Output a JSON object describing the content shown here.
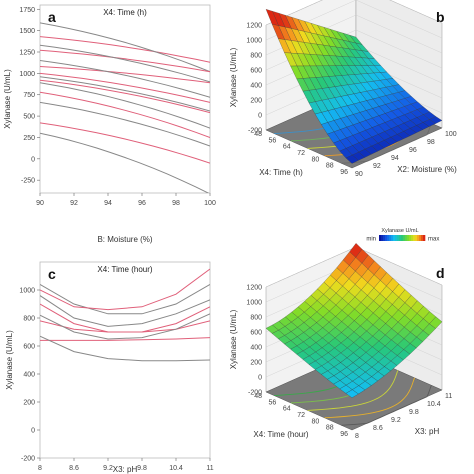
{
  "chart_data": [
    {
      "panel": "a",
      "type": "line",
      "title": "X4: Time (h)",
      "xlabel": "B: Moisture (%)",
      "ylabel": "Xylanase (U/mL)",
      "xlim": [
        90,
        100
      ],
      "ylim": [
        -400,
        1800
      ],
      "xticks": [
        90,
        92,
        94,
        96,
        98,
        100
      ],
      "yticks": [
        -250,
        0,
        250,
        500,
        750,
        1000,
        1250,
        1500,
        1750
      ],
      "series": [
        {
          "color": "#e0607a",
          "x": [
            90,
            100
          ],
          "y": [
            1430,
            1130
          ]
        },
        {
          "color": "#888888",
          "x": [
            90,
            100
          ],
          "y": [
            1590,
            1020
          ]
        },
        {
          "color": "#e0607a",
          "x": [
            90,
            100
          ],
          "y": [
            1270,
            1020
          ]
        },
        {
          "color": "#888888",
          "x": [
            90,
            100
          ],
          "y": [
            1330,
            900
          ]
        },
        {
          "color": "#e0607a",
          "x": [
            90,
            100
          ],
          "y": [
            1080,
            890
          ]
        },
        {
          "color": "#888888",
          "x": [
            90,
            100
          ],
          "y": [
            1150,
            720
          ]
        },
        {
          "color": "#e0607a",
          "x": [
            90,
            100
          ],
          "y": [
            1000,
            660
          ]
        },
        {
          "color": "#888888",
          "x": [
            90,
            100
          ],
          "y": [
            960,
            560
          ]
        },
        {
          "color": "#e0607a",
          "x": [
            90,
            100
          ],
          "y": [
            920,
            540
          ]
        },
        {
          "color": "#888888",
          "x": [
            90,
            100
          ],
          "y": [
            890,
            360
          ]
        },
        {
          "color": "#e0607a",
          "x": [
            90,
            100
          ],
          "y": [
            780,
            250
          ]
        },
        {
          "color": "#888888",
          "x": [
            90,
            100
          ],
          "y": [
            660,
            150
          ]
        },
        {
          "color": "#e0607a",
          "x": [
            90,
            100
          ],
          "y": [
            420,
            -50
          ]
        },
        {
          "color": "#888888",
          "x": [
            90,
            100
          ],
          "y": [
            300,
            -410
          ]
        }
      ]
    },
    {
      "panel": "b",
      "type": "surface3d",
      "zlabel": "Xylanase (U/mL)",
      "xlabel": "X4: Time (h)",
      "ylabel": "X2: Moisture (%)",
      "xticks": [
        48,
        56,
        64,
        72,
        80,
        88,
        96
      ],
      "yticks": [
        90,
        92,
        94,
        96,
        98,
        100
      ],
      "zticks": [
        -200,
        0,
        200,
        400,
        600,
        800,
        1000,
        1200
      ],
      "zlim": [
        -200,
        1200
      ],
      "legend": {
        "title": "Xylanase U/mL",
        "min": "min",
        "max": "max"
      }
    },
    {
      "panel": "c",
      "type": "line",
      "title": "X4: Time (hour)",
      "xlabel": "X3: pH",
      "ylabel": "Xylanase (U/mL)",
      "xlim": [
        8,
        11
      ],
      "ylim": [
        -200,
        1200
      ],
      "xticks": [
        8,
        8.6,
        9.2,
        9.8,
        10.4,
        11
      ],
      "yticks": [
        -200,
        0,
        200,
        400,
        600,
        800,
        1000
      ],
      "series": [
        {
          "color": "#888888",
          "x": [
            8,
            8.6,
            9.2,
            9.8,
            10.4,
            11
          ],
          "y": [
            1040,
            900,
            830,
            830,
            900,
            1040
          ]
        },
        {
          "color": "#e0607a",
          "x": [
            8,
            8.6,
            9.2,
            9.8,
            10.4,
            11
          ],
          "y": [
            1000,
            880,
            860,
            880,
            970,
            1150
          ]
        },
        {
          "color": "#888888",
          "x": [
            8,
            8.6,
            9.2,
            9.8,
            10.4,
            11
          ],
          "y": [
            960,
            800,
            740,
            760,
            830,
            930
          ]
        },
        {
          "color": "#e0607a",
          "x": [
            8,
            8.6,
            9.2,
            9.8,
            10.4,
            11
          ],
          "y": [
            900,
            760,
            700,
            700,
            760,
            880
          ]
        },
        {
          "color": "#e0607a",
          "x": [
            8,
            8.6,
            9.2,
            9.8,
            10.4,
            11
          ],
          "y": [
            780,
            720,
            700,
            700,
            720,
            780
          ]
        },
        {
          "color": "#888888",
          "x": [
            8,
            8.6,
            9.2,
            9.8,
            10.4,
            11
          ],
          "y": [
            820,
            700,
            650,
            660,
            720,
            830
          ]
        },
        {
          "color": "#e0607a",
          "x": [
            8,
            8.6,
            9.2,
            9.8,
            10.4,
            11
          ],
          "y": [
            640,
            640,
            640,
            645,
            650,
            660
          ]
        },
        {
          "color": "#888888",
          "x": [
            8,
            8.6,
            9.2,
            9.8,
            10.4,
            11
          ],
          "y": [
            670,
            560,
            510,
            495,
            495,
            500
          ]
        }
      ]
    },
    {
      "panel": "d",
      "type": "surface3d",
      "zlabel": "Xylanase (U/mL)",
      "xlabel": "X4: Time (hour)",
      "ylabel": "X3: pH",
      "xticks": [
        48,
        56,
        64,
        72,
        80,
        88,
        96
      ],
      "yticks": [
        8,
        8.6,
        9.2,
        9.8,
        10.4,
        11
      ],
      "zticks": [
        -200,
        0,
        200,
        400,
        600,
        800,
        1000,
        1200
      ],
      "zlim": [
        -200,
        1200
      ]
    }
  ]
}
